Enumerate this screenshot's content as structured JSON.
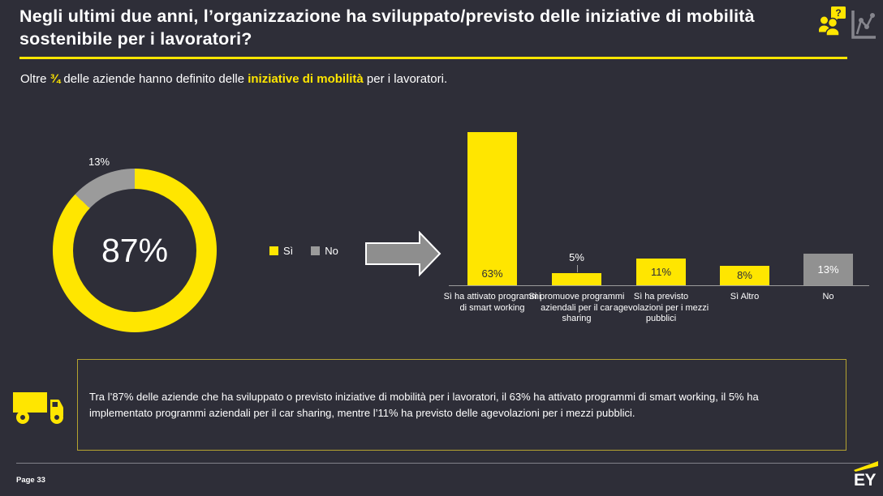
{
  "colors": {
    "background": "#2e2e38",
    "accent_yellow": "#ffe600",
    "gray": "#919191",
    "dim_yellow_border": "#b5a330",
    "text_white": "#ffffff",
    "text_dark": "#2e2e38"
  },
  "header": {
    "title": "Negli ultimi due anni, l’organizzazione ha sviluppato/previsto delle iniziative di mobilità sostenibile per i lavoratori?",
    "icons": [
      "people-question-icon",
      "line-chart-icon"
    ]
  },
  "subtitle": {
    "pre": "Oltre ",
    "fraction": "¾",
    "mid": " delle aziende hanno definito delle ",
    "highlight": "iniziative di mobilità",
    "post": " per i lavoratori."
  },
  "chart_data": [
    {
      "type": "pie",
      "subtype": "donut",
      "segments": [
        {
          "label": "Sì",
          "value": 87,
          "color": "#ffe600"
        },
        {
          "label": "No",
          "value": 13,
          "color": "#9b9b9b"
        }
      ],
      "center_label": "87%",
      "callout_label": "13%",
      "legend": [
        "Sì",
        "No"
      ],
      "legend_position": "right",
      "start_angle_deg": 0,
      "direction": "clockwise"
    },
    {
      "type": "bar",
      "categories": [
        "Sì ha attivato programmi di smart working",
        "Sì promuove programmi aziendali per il car sharing",
        "Sì ha previsto agevolazioni per i mezzi pubblici",
        "Sì Altro",
        "No"
      ],
      "values": [
        63,
        5,
        11,
        8,
        13
      ],
      "value_labels": [
        "63%",
        "5%",
        "11%",
        "8%",
        "13%"
      ],
      "bar_colors": [
        "#ffe600",
        "#ffe600",
        "#ffe600",
        "#ffe600",
        "#919191"
      ],
      "label_positions": [
        "inside",
        "outside",
        "inside",
        "inside",
        "inside"
      ],
      "label_colors": [
        "#2e2e38",
        "#ffffff",
        "#2e2e38",
        "#2e2e38",
        "#ffffff"
      ],
      "ylim": [
        0,
        63
      ],
      "grid": false,
      "axis_line": true
    }
  ],
  "arrow": {
    "icon": "right-arrow-icon"
  },
  "note_box": {
    "icon": "truck-icon",
    "text": "Tra l’87% delle aziende che ha sviluppato o previsto iniziative di mobilità per i lavoratori, il 63% ha attivato programmi di smart working, il 5% ha implementato programmi aziendali per il car sharing, mentre l’11% ha previsto delle agevolazioni per i mezzi pubblici."
  },
  "footer": {
    "page_label": "Page 33",
    "logo": "EY"
  }
}
